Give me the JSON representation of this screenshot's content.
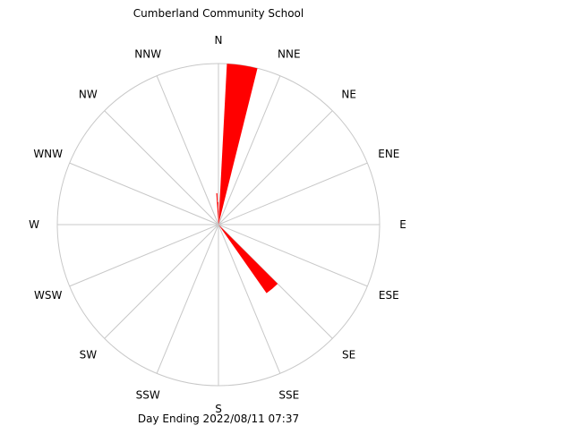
{
  "chart_data": {
    "type": "wind-rose",
    "title": "Cumberland Community School",
    "footer": "Day Ending 2022/08/11 07:37",
    "directions": [
      "N",
      "NNE",
      "NE",
      "ENE",
      "E",
      "ESE",
      "SE",
      "SSE",
      "S",
      "SSW",
      "SW",
      "WSW",
      "W",
      "WNW",
      "NW",
      "NNW"
    ],
    "bars": [
      {
        "start_deg": 3,
        "end_deg": 14,
        "value": 1.0
      },
      {
        "start_deg": 14,
        "end_deg": 15,
        "value": 0.015
      },
      {
        "start_deg": 135,
        "end_deg": 145,
        "value": 0.52
      },
      {
        "start_deg": 356,
        "end_deg": 358,
        "value": 0.195
      },
      {
        "start_deg": 358,
        "end_deg": 360,
        "value": 0.14
      }
    ],
    "grid": true,
    "bar_color": "#ff0000",
    "grid_color": "#c8c8c8"
  }
}
